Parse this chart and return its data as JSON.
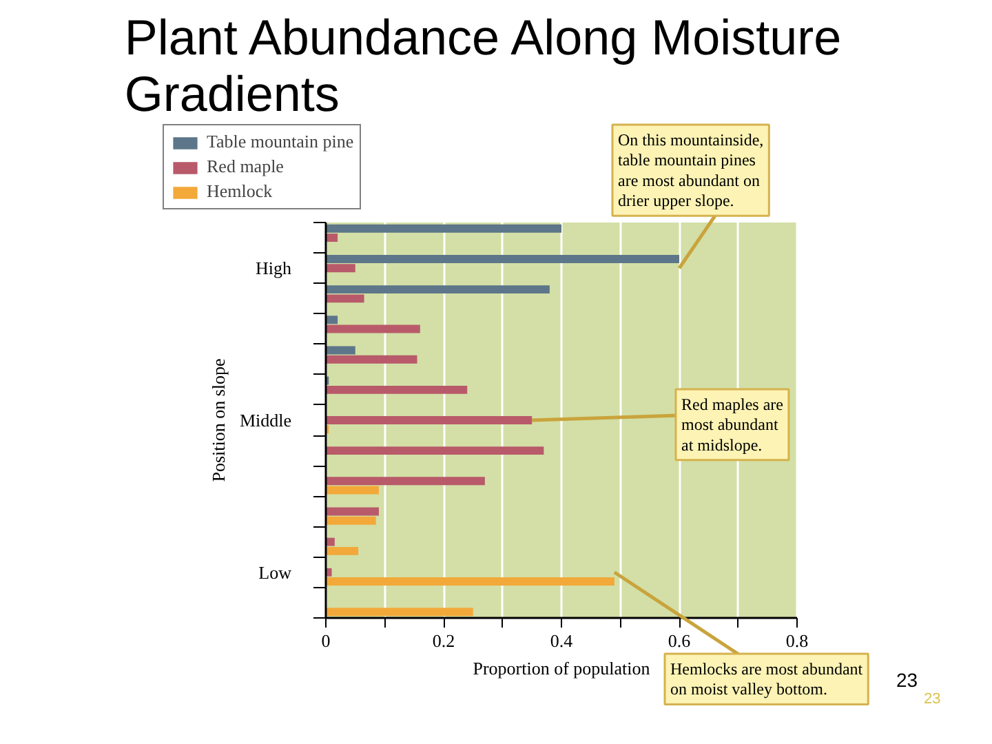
{
  "chart_data": {
    "type": "bar",
    "orientation": "horizontal",
    "title": "Plant Abundance Along Moisture Gradients",
    "xlabel": "Proportion of population",
    "ylabel": "Position on slope",
    "categories": [
      null,
      "High",
      null,
      null,
      null,
      null,
      "Middle",
      null,
      null,
      null,
      null,
      "Low",
      null
    ],
    "series": [
      {
        "name": "Table mountain pine",
        "color": "#5d7689",
        "values": [
          0.4,
          0.6,
          0.38,
          0.02,
          0.05,
          0.005,
          null,
          null,
          null,
          null,
          null,
          null,
          null
        ]
      },
      {
        "name": "Red maple",
        "color": "#b85a6a",
        "values": [
          0.02,
          0.05,
          0.065,
          0.16,
          0.155,
          0.24,
          0.35,
          0.37,
          0.27,
          0.09,
          0.015,
          0.01,
          null
        ]
      },
      {
        "name": "Hemlock",
        "color": "#f2a93a",
        "values": [
          null,
          null,
          null,
          null,
          null,
          null,
          0.005,
          null,
          0.09,
          0.085,
          0.055,
          0.49,
          0.25
        ]
      }
    ],
    "xlim": [
      0,
      0.8
    ],
    "xticks": [
      0,
      {
        "value": 0.1,
        "label": null
      },
      0.2,
      {
        "value": 0.3,
        "label": null
      },
      0.4,
      {
        "value": 0.5,
        "label": null
      },
      0.6,
      {
        "value": 0.7,
        "label": null
      },
      0.8
    ],
    "grid": "x",
    "legend": "top left",
    "annotations": [
      {
        "text": "On this mountainside, table mountain pines are most abundant on drier upper slope.",
        "x": 0.6,
        "y": "High"
      },
      {
        "text": "Red maples are most abundant at midslope.",
        "x": 0.35,
        "y": "Middle"
      },
      {
        "text": "Hemlocks are most abundant on moist valley bottom.",
        "x": 0.49,
        "y": "Low"
      },
      "23",
      "23"
    ]
  }
}
